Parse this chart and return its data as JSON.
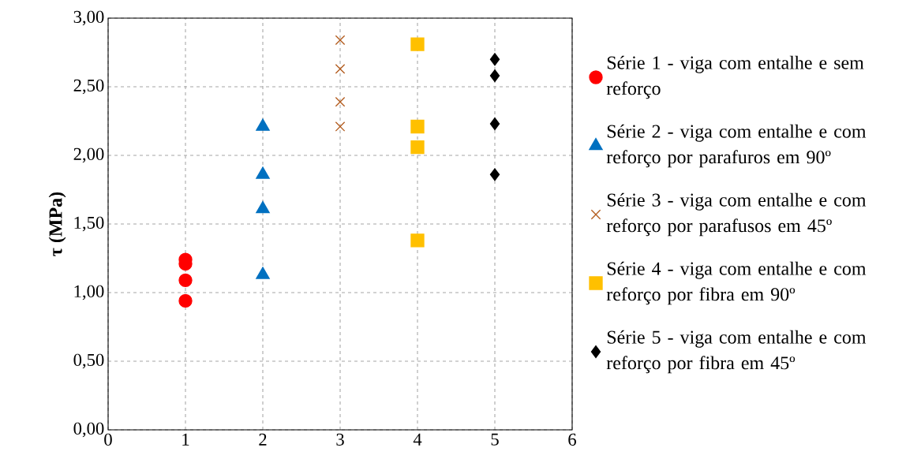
{
  "chart_data": {
    "type": "scatter",
    "ylabel": "τ (MPa)",
    "xlim": [
      0,
      6
    ],
    "xticks": [
      0,
      1,
      2,
      3,
      4,
      5,
      6
    ],
    "ylim": [
      0,
      3
    ],
    "yticks": [
      {
        "value": 0,
        "label": "0,00"
      },
      {
        "value": 0.5,
        "label": "0,50"
      },
      {
        "value": 1,
        "label": "1,00"
      },
      {
        "value": 1.5,
        "label": "1,50"
      },
      {
        "value": 2,
        "label": "2,00"
      },
      {
        "value": 2.5,
        "label": "2,50"
      },
      {
        "value": 3,
        "label": "3,00"
      }
    ],
    "grid": true,
    "legend": "right",
    "series": [
      {
        "name": "Série 1 - viga com entalhe e sem reforço",
        "color": "#ff0000",
        "marker": "circle",
        "x": [
          1,
          1,
          1,
          1
        ],
        "values": [
          1.24,
          1.21,
          1.09,
          0.94
        ]
      },
      {
        "name": "Série 2 - viga com entalhe e com reforço  por parafuros em 90º",
        "color": "#0070c0",
        "marker": "triangle",
        "x": [
          2,
          2,
          2,
          2
        ],
        "values": [
          2.21,
          1.86,
          1.61,
          1.13
        ]
      },
      {
        "name": "Série 3 - viga com entalhe e com reforço por parafusos em 45º",
        "color": "#b35c1e",
        "marker": "cross",
        "x": [
          3,
          3,
          3,
          3
        ],
        "values": [
          2.84,
          2.63,
          2.39,
          2.21
        ]
      },
      {
        "name": "Série 4 - viga com entalhe e com reforço por fibra em 90º",
        "color": "#ffc000",
        "marker": "square",
        "x": [
          4,
          4,
          4,
          4
        ],
        "values": [
          2.81,
          2.21,
          2.06,
          1.38
        ]
      },
      {
        "name": "Série 5 - viga com entalhe e com reforço por fibra em 45º",
        "color": "#000000",
        "marker": "diamond",
        "x": [
          5,
          5,
          5,
          5
        ],
        "values": [
          2.7,
          2.58,
          2.23,
          1.86
        ]
      }
    ]
  }
}
